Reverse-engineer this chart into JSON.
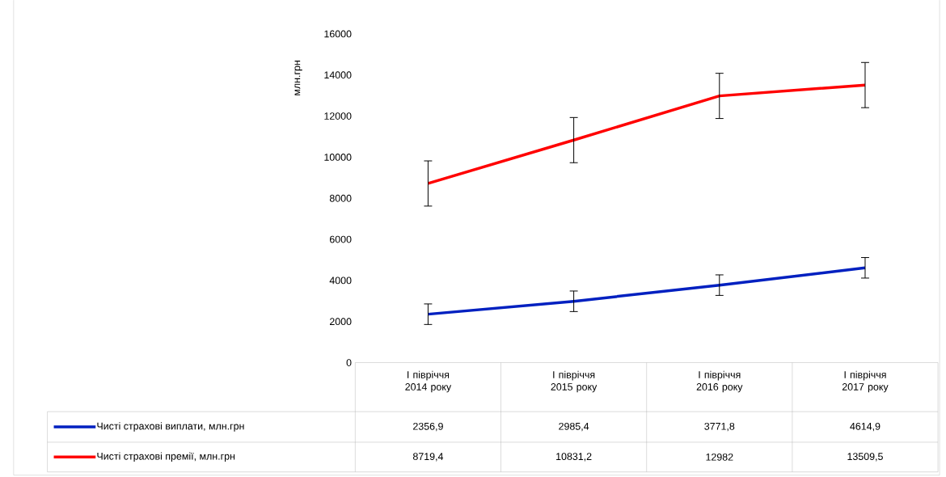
{
  "chart_data": {
    "type": "line",
    "ylabel": "млн.грн",
    "categories": [
      "І півріччя 2014 року",
      "І півріччя 2015 року",
      "І півріччя 2016 року",
      "І півріччя 2017 року"
    ],
    "series": [
      {
        "name": "Чисті страхові виплати, млн.грн",
        "color": "#0020c0",
        "values": [
          2356.9,
          2985.4,
          3771.8,
          4614.9
        ],
        "errors": [
          500,
          500,
          500,
          500
        ],
        "value_labels": [
          "2356,9",
          "2985,4",
          "3771,8",
          "4614,9"
        ]
      },
      {
        "name": "Чисті страхові премії, млн.грн",
        "color": "#ff0000",
        "values": [
          8719.4,
          10831.2,
          12982,
          13509.5
        ],
        "errors": [
          1100,
          1100,
          1100,
          1100
        ],
        "value_labels": [
          "8719,4",
          "10831,2",
          "12982",
          "13509,5"
        ]
      }
    ],
    "ylim": [
      0,
      16000
    ],
    "yticks": [
      0,
      2000,
      4000,
      6000,
      8000,
      10000,
      12000,
      14000,
      16000
    ],
    "legend": "bottom",
    "grid": false,
    "marker": "none",
    "line_style": "solid"
  }
}
